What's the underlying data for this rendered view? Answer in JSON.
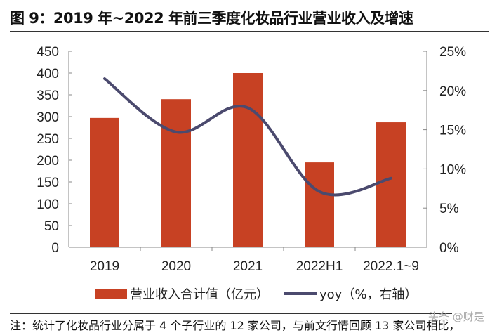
{
  "title": "图 9：2019 年~2022 年前三季度化妆品行业营业收入及增速",
  "note": "注：统计了化妆品行业分属于 4 个子行业的 12 家公司，与前文行情回顾 13 家公司相比，",
  "watermark": "头条 @财是",
  "chart_data": {
    "type": "bar+line",
    "categories": [
      "2019",
      "2020",
      "2021",
      "2022H1",
      "2022.1~9"
    ],
    "series": [
      {
        "name": "营业收入合计值（亿元）",
        "type": "bar",
        "axis": "left",
        "color": "#C74123",
        "values": [
          297,
          340,
          400,
          195,
          287
        ]
      },
      {
        "name": "yoy（%，右轴）",
        "type": "line",
        "axis": "right",
        "color": "#4B4A6E",
        "values": [
          21.5,
          14.7,
          17.8,
          7.1,
          8.8
        ]
      }
    ],
    "left_axis": {
      "ylim": [
        0,
        450
      ],
      "ticks": [
        "0",
        "50",
        "100",
        "150",
        "200",
        "250",
        "300",
        "350",
        "400",
        "450"
      ]
    },
    "right_axis": {
      "ylim": [
        0,
        25
      ],
      "ticks": [
        "0%",
        "5%",
        "10%",
        "15%",
        "20%",
        "25%"
      ]
    },
    "grid": false,
    "legend": "bottom"
  }
}
